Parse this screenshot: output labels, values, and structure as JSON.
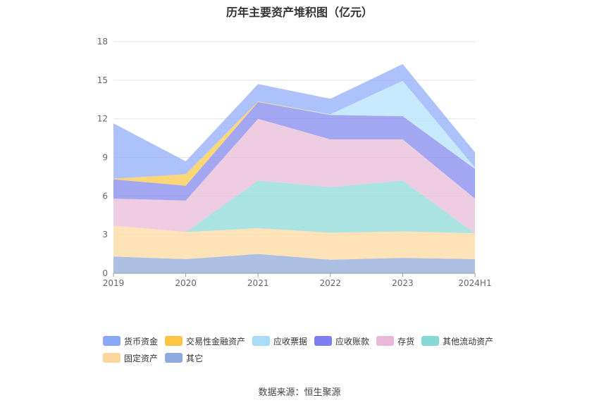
{
  "chart_data": {
    "type": "area",
    "stacked": true,
    "title": "历年主要资产堆积图（亿元）",
    "categories": [
      "2019",
      "2020",
      "2021",
      "2022",
      "2023",
      "2024H1"
    ],
    "ylim": [
      0,
      18
    ],
    "yticks": [
      0,
      3,
      6,
      9,
      12,
      15,
      18
    ],
    "grid": true,
    "legend_position": "bottom",
    "series": [
      {
        "name": "其它",
        "color": "#8fabd9",
        "values": [
          1.3,
          1.1,
          1.5,
          1.05,
          1.2,
          1.1
        ]
      },
      {
        "name": "固定资产",
        "color": "#fdd8a0",
        "values": [
          2.4,
          2.1,
          2.0,
          2.1,
          2.05,
          2.0
        ]
      },
      {
        "name": "其他流动资产",
        "color": "#8fdbd8",
        "values": [
          0.0,
          0.0,
          3.7,
          3.55,
          3.95,
          0.0
        ]
      },
      {
        "name": "存货",
        "color": "#e8bcd9",
        "values": [
          2.1,
          2.45,
          4.8,
          3.7,
          3.2,
          2.7
        ]
      },
      {
        "name": "应收账款",
        "color": "#8488ec",
        "values": [
          1.5,
          1.15,
          1.3,
          1.9,
          1.8,
          2.3
        ]
      },
      {
        "name": "交易性金融资产",
        "color": "#fcc84a",
        "values": [
          0.05,
          0.9,
          0.05,
          0.0,
          0.0,
          0.0
        ]
      },
      {
        "name": "应收票据",
        "color": "#b3e3fb",
        "values": [
          0.0,
          0.0,
          0.0,
          0.05,
          2.75,
          0.1
        ]
      },
      {
        "name": "货币资金",
        "color": "#92aef8",
        "values": [
          4.3,
          1.0,
          1.35,
          1.2,
          1.3,
          1.2
        ]
      }
    ]
  },
  "legend": [
    {
      "label": "货币资金",
      "color": "#8aa8f8"
    },
    {
      "label": "交易性金融资产",
      "color": "#fcc642"
    },
    {
      "label": "应收票据",
      "color": "#a6dcf8"
    },
    {
      "label": "应收账款",
      "color": "#7c7ef0"
    },
    {
      "label": "存货",
      "color": "#e8b8d8"
    },
    {
      "label": "其他流动资产",
      "color": "#86d9d6"
    },
    {
      "label": "固定资产",
      "color": "#fcd69c"
    },
    {
      "label": "其它",
      "color": "#8eaade"
    }
  ],
  "source": "数据来源：恒生聚源"
}
